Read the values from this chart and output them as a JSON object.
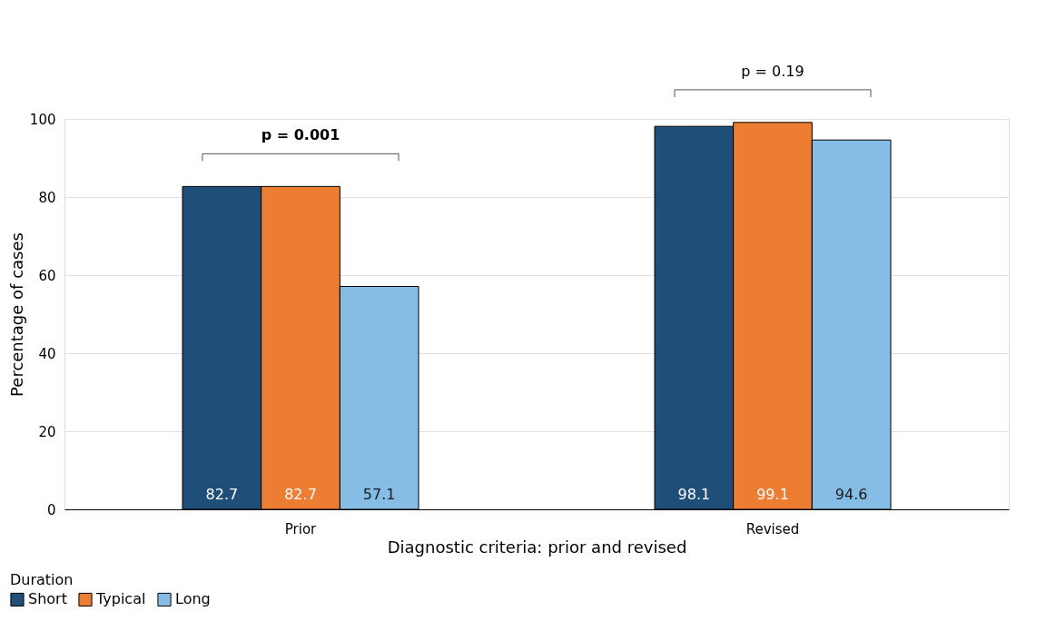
{
  "chart_data": {
    "type": "bar",
    "xlabel": "Diagnostic criteria: prior and revised",
    "ylabel": "Percentage of cases",
    "legend_title": "Duration",
    "categories": [
      "Prior",
      "Revised"
    ],
    "series": [
      {
        "name": "Short",
        "color": "#1f4e79",
        "values": [
          82.7,
          98.1
        ]
      },
      {
        "name": "Typical",
        "color": "#ed7d31",
        "values": [
          82.7,
          99.1
        ]
      },
      {
        "name": "Long",
        "color": "#85bde6",
        "values": [
          57.1,
          94.6
        ]
      }
    ],
    "ylim": [
      0,
      100
    ],
    "yticks": [
      0,
      20,
      40,
      60,
      80,
      100
    ],
    "grid": "y",
    "legend": "bottom left",
    "data_labels": true,
    "annotations": [
      "p = 0.001",
      "p = 0.19"
    ]
  }
}
